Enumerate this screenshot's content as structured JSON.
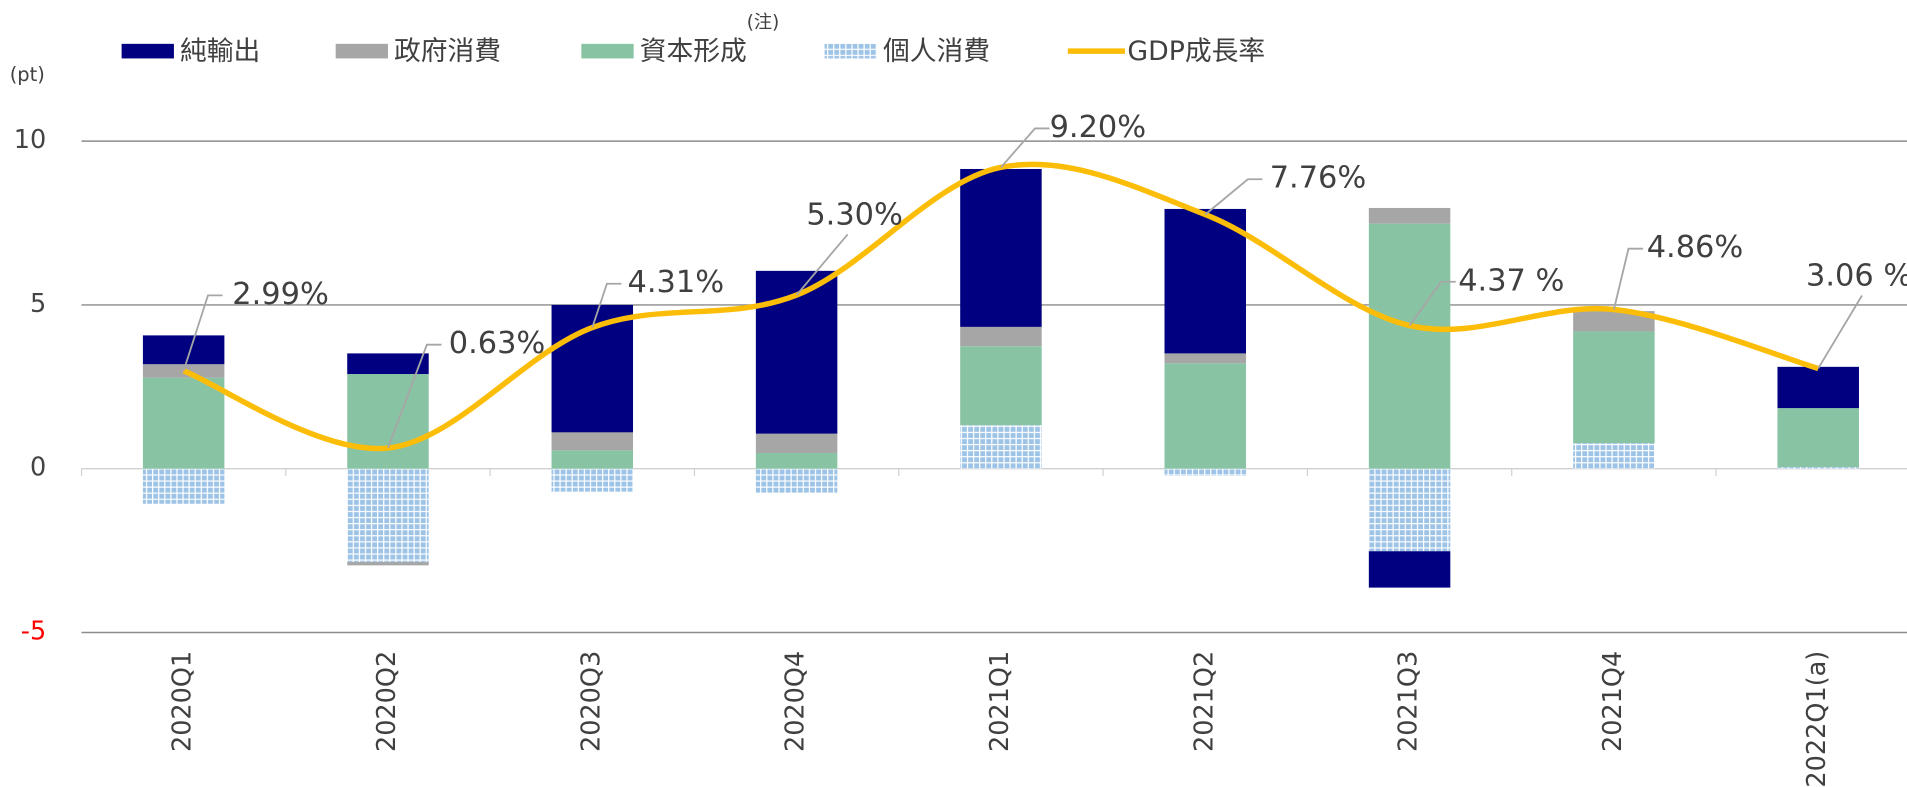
{
  "chart_data": {
    "type": "bar",
    "y_unit_label": "(pt)",
    "annotation": "(注)",
    "categories": [
      "2020Q1",
      "2020Q2",
      "2020Q3",
      "2020Q4",
      "2021Q1",
      "2021Q2",
      "2021Q3",
      "2021Q4",
      "2022Q1(a)"
    ],
    "series": [
      {
        "name": "純輸出",
        "color": "#000080",
        "values": [
          0.88,
          0.63,
          3.89,
          4.97,
          4.82,
          4.41,
          -1.11,
          0,
          1.26
        ]
      },
      {
        "name": "政府消費",
        "color": "#a6a6a6",
        "values": [
          0.41,
          -0.1,
          0.55,
          0.59,
          0.59,
          0.3,
          0.48,
          0.62,
          0
        ]
      },
      {
        "name": "資本形成",
        "color": "#88c4a4",
        "values": [
          2.78,
          2.89,
          0.56,
          0.48,
          2.41,
          3.22,
          7.48,
          3.41,
          1.8
        ]
      },
      {
        "name": "個人消費",
        "color": "#9dc3e6",
        "pattern": "grid",
        "values": [
          -1.07,
          -2.85,
          -0.7,
          -0.75,
          1.33,
          -0.22,
          -2.52,
          0.78,
          0.05
        ]
      },
      {
        "name": "GDP成長率",
        "type": "line",
        "color": "#fbbd08",
        "values": [
          2.99,
          0.63,
          4.31,
          5.3,
          9.2,
          7.76,
          4.37,
          4.86,
          3.06
        ],
        "value_labels": [
          "2.99%",
          "0.63%",
          "4.31%",
          "5.30%",
          "9.20%",
          "7.76%",
          "4.37 %",
          "4.86%",
          "3.06 %"
        ]
      }
    ],
    "ylim": [
      -5,
      10
    ],
    "yticks": [
      -5,
      0,
      5,
      10
    ],
    "ytick_colors": [
      "#ff0000",
      "#444444",
      "#444444",
      "#444444"
    ],
    "grid": true,
    "legend": "top"
  }
}
